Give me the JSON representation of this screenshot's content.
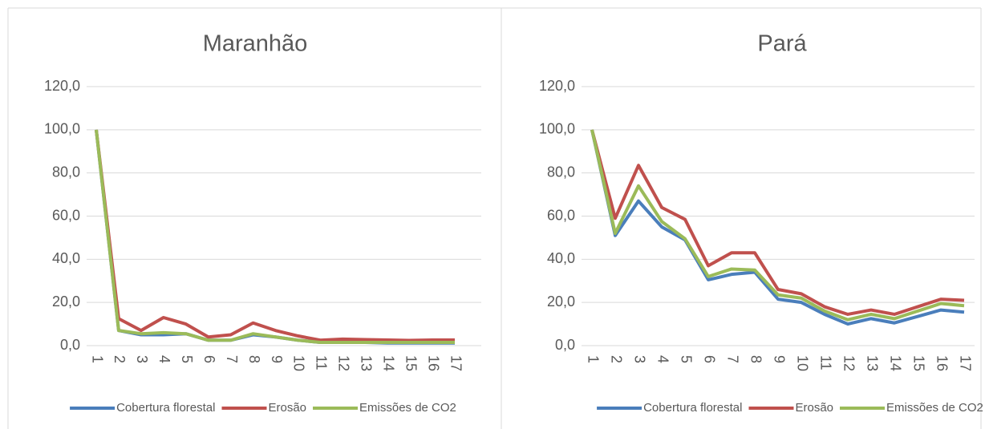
{
  "chart_data": [
    {
      "type": "line",
      "title": "Maranhão",
      "categories": [
        "1",
        "2",
        "3",
        "4",
        "5",
        "6",
        "7",
        "8",
        "9",
        "10",
        "11",
        "12",
        "13",
        "14",
        "15",
        "16",
        "17"
      ],
      "series": [
        {
          "name": "Cobertura florestal",
          "color": "#4a7ebb",
          "values": [
            100,
            7,
            5,
            5,
            5.5,
            2.5,
            2.5,
            5,
            4,
            2.5,
            1.5,
            1.5,
            1.5,
            1.2,
            1.2,
            1.2,
            1.2
          ]
        },
        {
          "name": "Erosão",
          "color": "#c0504d",
          "values": [
            100,
            12.5,
            7,
            13,
            10,
            4,
            5,
            10.5,
            7,
            4.5,
            2.5,
            3,
            2.8,
            2.6,
            2.4,
            2.6,
            2.6
          ]
        },
        {
          "name": "Emissões de CO2",
          "color": "#9bbb59",
          "values": [
            100,
            7,
            5.5,
            6,
            5.5,
            2.5,
            2.5,
            5.5,
            4,
            2.5,
            1.5,
            1.5,
            1.5,
            1.5,
            1.5,
            1.5,
            1.5
          ]
        }
      ],
      "ylim": [
        0,
        120
      ],
      "yticks": [
        {
          "value": 0,
          "label": "0,0"
        },
        {
          "value": 20,
          "label": "20,0"
        },
        {
          "value": 40,
          "label": "40,0"
        },
        {
          "value": 60,
          "label": "60,0"
        },
        {
          "value": 80,
          "label": "80,0"
        },
        {
          "value": 100,
          "label": "100,0"
        },
        {
          "value": 120,
          "label": "120,0"
        }
      ],
      "grid": true,
      "legend": "bottom"
    },
    {
      "type": "line",
      "title": "Pará",
      "categories": [
        "1",
        "2",
        "3",
        "4",
        "5",
        "6",
        "7",
        "8",
        "9",
        "10",
        "11",
        "12",
        "13",
        "14",
        "15",
        "16",
        "17"
      ],
      "series": [
        {
          "name": "Cobertura florestal",
          "color": "#4a7ebb",
          "values": [
            100,
            51,
            67,
            55,
            49,
            30.5,
            33,
            34,
            21.5,
            20,
            14.5,
            10,
            12.5,
            10.5,
            13.5,
            16.5,
            15.5
          ]
        },
        {
          "name": "Erosão",
          "color": "#c0504d",
          "values": [
            100,
            59,
            83.5,
            64,
            58.5,
            37,
            43,
            43,
            26,
            24,
            18,
            14.5,
            16.5,
            14.5,
            18,
            21.5,
            21
          ]
        },
        {
          "name": "Emissões de CO2",
          "color": "#9bbb59",
          "values": [
            100,
            52,
            74,
            57.5,
            49.5,
            32,
            35.5,
            35,
            23.5,
            22,
            16,
            12,
            14.5,
            12.5,
            16,
            19.5,
            18.5
          ]
        }
      ],
      "ylim": [
        0,
        120
      ],
      "yticks": [
        {
          "value": 0,
          "label": "0,0"
        },
        {
          "value": 20,
          "label": "20,0"
        },
        {
          "value": 40,
          "label": "40,0"
        },
        {
          "value": 60,
          "label": "60,0"
        },
        {
          "value": 80,
          "label": "80,0"
        },
        {
          "value": 100,
          "label": "100,0"
        },
        {
          "value": 120,
          "label": "120,0"
        }
      ],
      "grid": true,
      "legend": "bottom"
    }
  ]
}
